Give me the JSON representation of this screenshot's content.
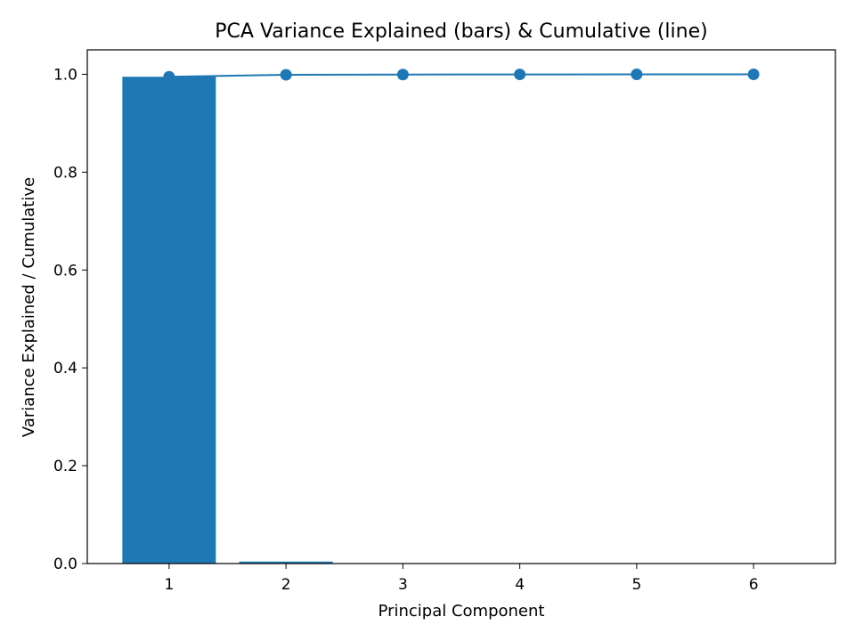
{
  "chart_data": {
    "type": "bar",
    "title": "PCA Variance Explained (bars) & Cumulative (line)",
    "xlabel": "Principal Component",
    "ylabel": "Variance Explained / Cumulative",
    "categories": [
      "1",
      "2",
      "3",
      "4",
      "5",
      "6"
    ],
    "series": [
      {
        "type": "bar",
        "values": [
          0.995,
          0.004,
          0.0005,
          0.0003,
          0.0001,
          0.0001
        ]
      },
      {
        "type": "line",
        "values": [
          0.995,
          0.999,
          0.9995,
          0.9998,
          0.9999,
          1.0
        ]
      }
    ],
    "xlim": [
      0.3,
      6.7
    ],
    "ylim": [
      0.0,
      1.05
    ],
    "yticks": [
      "0.0",
      "0.2",
      "0.4",
      "0.6",
      "0.8",
      "1.0"
    ],
    "grid": false,
    "colors": {
      "bar": "#1f77b4",
      "line": "#1f77b4"
    }
  }
}
